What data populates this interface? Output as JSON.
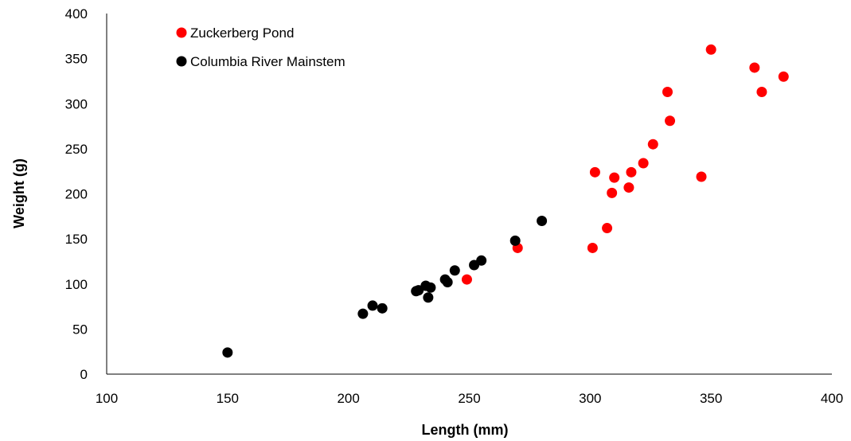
{
  "chart_data": {
    "type": "scatter",
    "title": "",
    "xlabel": "Length (mm)",
    "ylabel": "Weight (g)",
    "xlim": [
      100,
      400
    ],
    "ylim": [
      0,
      400
    ],
    "x_ticks": [
      100,
      150,
      200,
      250,
      300,
      350,
      400
    ],
    "y_ticks": [
      0,
      50,
      100,
      150,
      200,
      250,
      300,
      350,
      400
    ],
    "grid": false,
    "legend_position": "top-left",
    "series": [
      {
        "name": "Zuckerberg Pond",
        "color": "#ff0000",
        "points": [
          [
            249,
            105
          ],
          [
            270,
            140
          ],
          [
            301,
            140
          ],
          [
            302,
            224
          ],
          [
            307,
            162
          ],
          [
            309,
            201
          ],
          [
            310,
            218
          ],
          [
            316,
            207
          ],
          [
            317,
            224
          ],
          [
            322,
            234
          ],
          [
            326,
            255
          ],
          [
            332,
            313
          ],
          [
            333,
            281
          ],
          [
            346,
            219
          ],
          [
            350,
            360
          ],
          [
            368,
            340
          ],
          [
            371,
            313
          ],
          [
            380,
            330
          ]
        ]
      },
      {
        "name": "Columbia River Mainstem",
        "color": "#000000",
        "points": [
          [
            150,
            24
          ],
          [
            206,
            67
          ],
          [
            210,
            76
          ],
          [
            214,
            73
          ],
          [
            228,
            92
          ],
          [
            229,
            93
          ],
          [
            232,
            98
          ],
          [
            233,
            85
          ],
          [
            234,
            96
          ],
          [
            240,
            105
          ],
          [
            241,
            102
          ],
          [
            244,
            115
          ],
          [
            252,
            121
          ],
          [
            255,
            126
          ],
          [
            269,
            148
          ],
          [
            280,
            170
          ]
        ]
      }
    ]
  }
}
